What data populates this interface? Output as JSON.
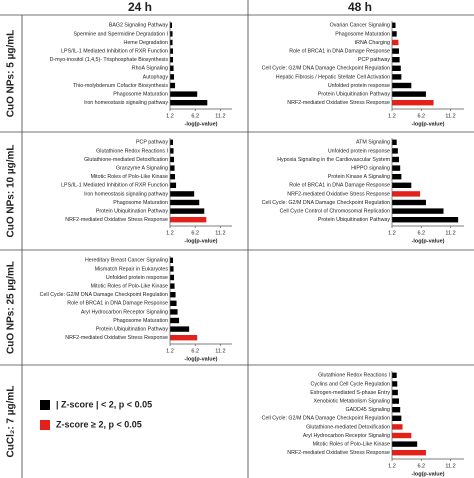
{
  "headers": [
    "24 h",
    "48 h"
  ],
  "row_labels": [
    "CuO NPs: 5 µg/mL",
    "CuO NPs: 10 µg/mL",
    "CuO NPs: 25 µg/mL",
    "CuCl₂: 7 µg/mL"
  ],
  "legend": [
    {
      "label": "| Z-score | < 2, p < 0.05",
      "color": "#000000"
    },
    {
      "label": "Z-score ≥ 2, p < 0.05",
      "color": "#e32119"
    }
  ],
  "chart_data": [
    {
      "type": "bar",
      "orientation": "horizontal",
      "x_label": "-log(p-value)",
      "xlim": [
        1.2,
        13.5
      ],
      "xticks": [
        1.2,
        6.2,
        11.2
      ],
      "categories": [
        "BAG2 Signaling Pathway",
        "Spermine and Spermidine Degradation I",
        "Heme Degradation",
        "LPS/IL-1 Mediated Inhibition of RXR Function",
        "D-myo-inositol (1,4,5)- Trisphosphate Biosynthesis",
        "RhoA Signaling",
        "Autophagy",
        "Thio-molybdenum Cofactor Biosynthesis",
        "Phagosome Maturation",
        "Iron homeostasis signaling pathway"
      ],
      "values": [
        1.6,
        1.7,
        1.7,
        1.8,
        1.8,
        1.9,
        2.0,
        2.2,
        6.6,
        8.6
      ],
      "colors": [
        "#000000",
        "#000000",
        "#000000",
        "#000000",
        "#000000",
        "#000000",
        "#000000",
        "#000000",
        "#000000",
        "#000000"
      ]
    },
    {
      "type": "bar",
      "orientation": "horizontal",
      "x_label": "-log(p-value)",
      "xlim": [
        1.2,
        13.5
      ],
      "xticks": [
        1.2,
        6.2,
        11.2
      ],
      "categories": [
        "Ovarian Cancer Signaling",
        "Phagosome Maturation",
        "tRNA Charging",
        "Role of BRCA1 in DNA Damage Response",
        "PCP pathway",
        "Cell Cycle: G2/M DNA Damage Checkpoint Regulation",
        "Hepatic Fibrosis / Hepatic Stellate Cell Activation",
        "Unfolded protein response",
        "Protein Ubiquitination Pathway",
        "NRF2-mediated Oxidative Stress Response"
      ],
      "values": [
        1.8,
        2.0,
        2.3,
        2.4,
        2.5,
        2.7,
        2.8,
        4.5,
        7.0,
        8.3
      ],
      "colors": [
        "#000000",
        "#000000",
        "#e32119",
        "#000000",
        "#000000",
        "#000000",
        "#000000",
        "#000000",
        "#000000",
        "#e32119"
      ]
    },
    {
      "type": "bar",
      "orientation": "horizontal",
      "x_label": "-log(p-value)",
      "xlim": [
        1.2,
        13.5
      ],
      "xticks": [
        1.2,
        6.2,
        11.2
      ],
      "categories": [
        "PCP pathway",
        "Glutathione Redox Reactions I",
        "Glutathione-mediated Detoxification",
        "Granzyme A Signaling",
        "Mitotic Roles of Polo-Like Kinase",
        "LPS/IL-1 Mediated Inhibition of RXR Function",
        "Iron homeostasis signaling pathway",
        "Phagosome Maturation",
        "Protein Ubiquitination Pathway",
        "NRF2-mediated Oxidative Stress Response"
      ],
      "values": [
        1.8,
        1.9,
        2.0,
        2.1,
        2.2,
        2.4,
        6.0,
        7.0,
        8.0,
        8.4
      ],
      "colors": [
        "#000000",
        "#000000",
        "#000000",
        "#000000",
        "#000000",
        "#000000",
        "#000000",
        "#000000",
        "#000000",
        "#e32119"
      ]
    },
    {
      "type": "bar",
      "orientation": "horizontal",
      "x_label": "-log(p-value)",
      "xlim": [
        1.2,
        13.5
      ],
      "xticks": [
        1.2,
        6.2,
        11.2
      ],
      "categories": [
        "ATM Signaling",
        "Unfolded protein response",
        "Hypoxia Signaling in the Cardiovascular System",
        "HIPPO signaling",
        "Protein Kinase A Signaling",
        "Role of BRCA1 in DNA Damage Response",
        "NRF2-mediated Oxidative Stress Response",
        "Cell Cycle: G2/M DNA Damage Checkpoint Regulation",
        "Cell Cycle Control of Chromosomal Replication",
        "Protein Ubiquitination Pathway"
      ],
      "values": [
        2.0,
        2.2,
        2.4,
        2.6,
        2.8,
        4.5,
        6.0,
        7.0,
        10.0,
        12.5
      ],
      "colors": [
        "#000000",
        "#000000",
        "#000000",
        "#000000",
        "#000000",
        "#000000",
        "#e32119",
        "#000000",
        "#000000",
        "#000000"
      ]
    },
    {
      "type": "bar",
      "orientation": "horizontal",
      "x_label": "-log(p-value)",
      "xlim": [
        1.2,
        13.5
      ],
      "xticks": [
        1.2,
        6.2,
        11.2
      ],
      "categories": [
        "Hereditary Breast Cancer Signaling",
        "Mismatch Repair in Eukaryotes",
        "Unfolded protein response",
        "Mitotic Roles of Polo-Like Kinase",
        "Cell Cycle: G2/M DNA Damage Checkpoint Regulation",
        "Role of BRCA1 in DNA Damage Response",
        "Aryl Hydrocarbon Receptor Signaling",
        "Phagosome Maturation",
        "Protein Ubiquitination Pathway",
        "NRF2-mediated Oxidative Stress Response"
      ],
      "values": [
        1.8,
        1.9,
        2.0,
        2.1,
        2.3,
        2.5,
        2.7,
        3.0,
        5.0,
        6.6
      ],
      "colors": [
        "#000000",
        "#000000",
        "#000000",
        "#000000",
        "#000000",
        "#000000",
        "#000000",
        "#000000",
        "#000000",
        "#e32119"
      ]
    },
    {
      "type": "bar",
      "orientation": "horizontal",
      "x_label": "-log(p-value)",
      "xlim": [
        1.2,
        13.5
      ],
      "xticks": [
        1.2,
        6.2,
        11.2
      ],
      "categories": [
        "Glutathione Redox Reactions I",
        "Cyclins and Cell Cycle Regulation",
        "Estrogen-mediated S-phase Entry",
        "Xenobiotic Metabolism Signaling",
        "GADD45 Signaling",
        "Cell Cycle: G2/M DNA Damage Checkpoint Regulation",
        "Glutathione-mediated Detoxification",
        "Aryl Hydrocarbon Receptor Signaling",
        "Mitotic Roles of Polo-Like Kinase",
        "NRF2-mediated Oxidative Stress Response"
      ],
      "values": [
        2.0,
        2.1,
        2.2,
        2.4,
        2.6,
        2.8,
        3.0,
        4.5,
        5.5,
        7.0
      ],
      "colors": [
        "#000000",
        "#000000",
        "#000000",
        "#000000",
        "#000000",
        "#000000",
        "#e32119",
        "#e32119",
        "#000000",
        "#e32119"
      ]
    }
  ]
}
